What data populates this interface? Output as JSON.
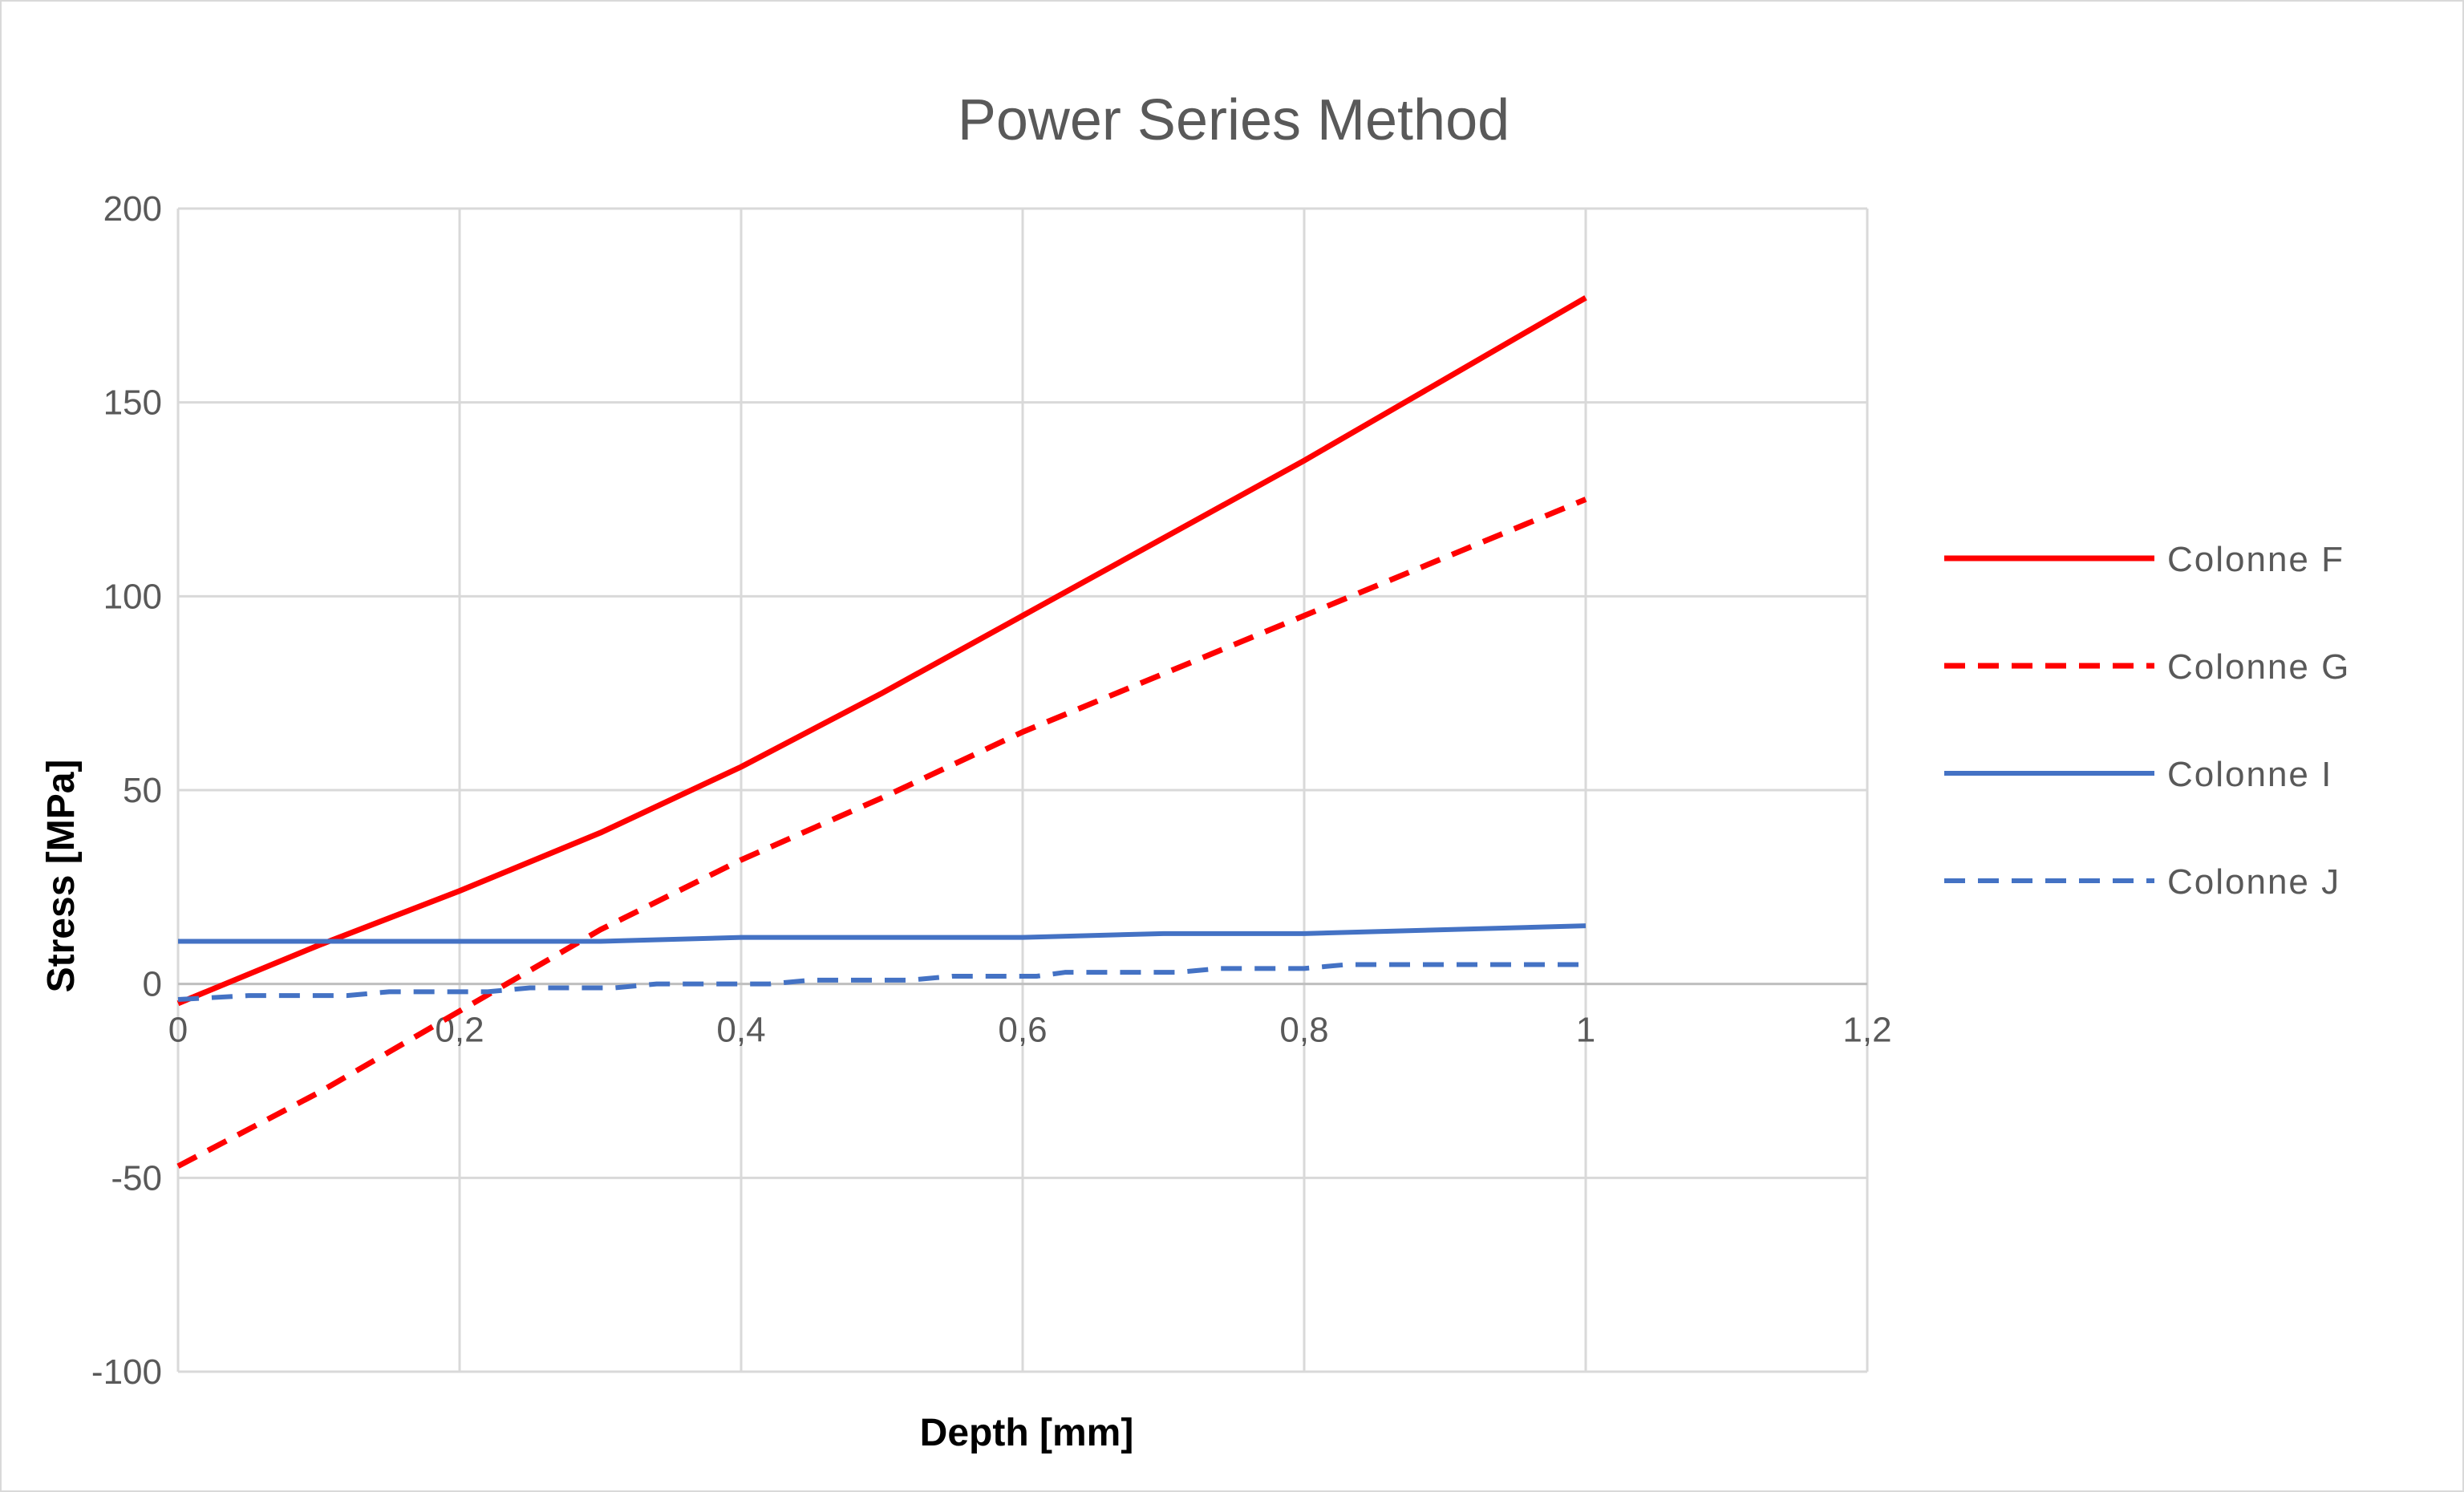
{
  "chart_data": {
    "type": "line",
    "title": "Power Series Method",
    "xlabel": "Depth [mm]",
    "ylabel": "Stress [MPa]",
    "xlim": [
      0,
      1.2
    ],
    "ylim": [
      -100,
      200
    ],
    "x_ticks": [
      {
        "value": 0,
        "label": "0"
      },
      {
        "value": 0.2,
        "label": "0,2"
      },
      {
        "value": 0.4,
        "label": "0,4"
      },
      {
        "value": 0.6,
        "label": "0,6"
      },
      {
        "value": 0.8,
        "label": "0,8"
      },
      {
        "value": 1,
        "label": "1"
      },
      {
        "value": 1.2,
        "label": "1,2"
      }
    ],
    "y_ticks": [
      {
        "value": 200,
        "label": "200"
      },
      {
        "value": 150,
        "label": "150"
      },
      {
        "value": 100,
        "label": "100"
      },
      {
        "value": 50,
        "label": "50"
      },
      {
        "value": 0,
        "label": "0"
      },
      {
        "value": -50,
        "label": "-50"
      },
      {
        "value": -100,
        "label": "-100"
      }
    ],
    "grid": true,
    "legend_position": "right",
    "series": [
      {
        "name": "Colonne F",
        "color": "#ff0000",
        "dash": "solid",
        "weight": "heavy",
        "points": [
          [
            0,
            -5
          ],
          [
            0.1,
            10
          ],
          [
            0.2,
            24
          ],
          [
            0.3,
            39
          ],
          [
            0.4,
            56
          ],
          [
            0.5,
            75
          ],
          [
            0.6,
            95
          ],
          [
            0.7,
            115
          ],
          [
            0.8,
            135
          ],
          [
            0.9,
            156
          ],
          [
            1.0,
            177
          ]
        ]
      },
      {
        "name": "Colonne G",
        "color": "#ff0000",
        "dash": "dashed",
        "weight": "heavy",
        "points": [
          [
            0,
            -47
          ],
          [
            0.1,
            -28
          ],
          [
            0.2,
            -7
          ],
          [
            0.3,
            14
          ],
          [
            0.4,
            32
          ],
          [
            0.5,
            48
          ],
          [
            0.6,
            65
          ],
          [
            0.7,
            80
          ],
          [
            0.8,
            95
          ],
          [
            0.9,
            110
          ],
          [
            1.0,
            125
          ]
        ]
      },
      {
        "name": "Colonne I",
        "color": "#4472c4",
        "dash": "solid",
        "weight": "medium",
        "points": [
          [
            0,
            11
          ],
          [
            0.1,
            11
          ],
          [
            0.2,
            11
          ],
          [
            0.3,
            11
          ],
          [
            0.4,
            12
          ],
          [
            0.5,
            12
          ],
          [
            0.6,
            12
          ],
          [
            0.7,
            13
          ],
          [
            0.8,
            13
          ],
          [
            0.9,
            14
          ],
          [
            1.0,
            15
          ]
        ]
      },
      {
        "name": "Colonne J",
        "color": "#4472c4",
        "dash": "dashed",
        "weight": "medium",
        "points": [
          [
            0,
            -4
          ],
          [
            0.05,
            -3
          ],
          [
            0.12,
            -3
          ],
          [
            0.15,
            -2
          ],
          [
            0.22,
            -2
          ],
          [
            0.25,
            -1
          ],
          [
            0.31,
            -1
          ],
          [
            0.34,
            0
          ],
          [
            0.42,
            0
          ],
          [
            0.45,
            1
          ],
          [
            0.52,
            1
          ],
          [
            0.55,
            2
          ],
          [
            0.61,
            2
          ],
          [
            0.63,
            3
          ],
          [
            0.71,
            3
          ],
          [
            0.74,
            4
          ],
          [
            0.8,
            4
          ],
          [
            0.83,
            5
          ],
          [
            0.92,
            5
          ],
          [
            1.0,
            5
          ]
        ]
      }
    ]
  }
}
